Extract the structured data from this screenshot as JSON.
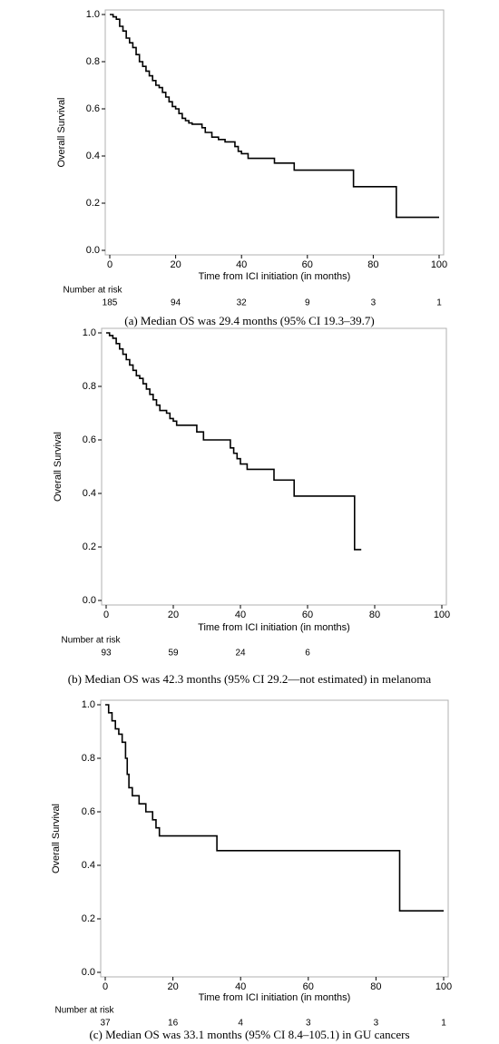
{
  "chart_data": [
    {
      "type": "line",
      "step": "post",
      "y_label": "Overall Survival",
      "x_label": "Time from ICI initiation (in months)",
      "xlim": [
        0,
        100
      ],
      "ylim": [
        0,
        1
      ],
      "xticks": [
        0,
        20,
        40,
        60,
        80,
        100
      ],
      "yticks": [
        {
          "value": 0,
          "label": "0.0"
        },
        {
          "value": 0.2,
          "label": "0.2"
        },
        {
          "value": 0.4,
          "label": "0.4"
        },
        {
          "value": 0.6,
          "label": "0.6"
        },
        {
          "value": 0.8,
          "label": "0.8"
        },
        {
          "value": 1,
          "label": "1.0"
        }
      ],
      "series": [
        {
          "color": "#000000",
          "x": [
            0,
            1,
            2,
            3,
            4,
            5,
            6,
            7,
            8,
            9,
            10,
            11,
            12,
            13,
            14,
            15,
            16,
            17,
            18,
            19,
            20,
            21,
            22,
            23,
            24,
            25,
            28,
            29,
            31,
            33,
            35,
            38,
            39,
            40,
            42,
            50,
            56,
            74,
            87,
            100
          ],
          "values": [
            1,
            0.99,
            0.98,
            0.95,
            0.93,
            0.9,
            0.88,
            0.86,
            0.83,
            0.8,
            0.78,
            0.76,
            0.74,
            0.72,
            0.7,
            0.69,
            0.67,
            0.65,
            0.63,
            0.61,
            0.6,
            0.58,
            0.56,
            0.55,
            0.54,
            0.535,
            0.52,
            0.5,
            0.48,
            0.47,
            0.46,
            0.44,
            0.42,
            0.41,
            0.39,
            0.37,
            0.34,
            0.27,
            0.14,
            0.14
          ]
        }
      ],
      "risk_label": "Number at risk",
      "risk_counts": [
        185,
        94,
        32,
        9,
        3,
        1
      ],
      "caption": "(a) Median OS was 29.4 months (95% CI 19.3–39.7)"
    },
    {
      "type": "line",
      "step": "post",
      "y_label": "Overall Survival",
      "x_label": "Time from ICI initiation (in months)",
      "xlim": [
        0,
        100
      ],
      "ylim": [
        0,
        1
      ],
      "xticks": [
        0,
        20,
        40,
        60,
        80,
        100
      ],
      "yticks": [
        {
          "value": 0,
          "label": "0.0"
        },
        {
          "value": 0.2,
          "label": "0.2"
        },
        {
          "value": 0.4,
          "label": "0.4"
        },
        {
          "value": 0.6,
          "label": "0.6"
        },
        {
          "value": 0.8,
          "label": "0.8"
        },
        {
          "value": 1,
          "label": "1.0"
        }
      ],
      "series": [
        {
          "color": "#000000",
          "x": [
            0,
            1,
            2,
            3,
            4,
            5,
            6,
            7,
            8,
            9,
            10,
            11,
            12,
            13,
            14,
            15,
            16,
            18,
            19,
            20,
            21,
            27,
            29,
            37,
            38,
            39,
            40,
            42,
            50,
            56,
            74,
            76
          ],
          "values": [
            1,
            0.99,
            0.98,
            0.96,
            0.94,
            0.92,
            0.9,
            0.88,
            0.86,
            0.84,
            0.83,
            0.81,
            0.79,
            0.77,
            0.75,
            0.73,
            0.71,
            0.7,
            0.68,
            0.67,
            0.655,
            0.63,
            0.6,
            0.57,
            0.55,
            0.53,
            0.51,
            0.49,
            0.45,
            0.39,
            0.19,
            0.19
          ]
        }
      ],
      "risk_label": "Number at risk",
      "risk_counts": [
        93,
        59,
        24,
        6
      ],
      "caption": "(b) Median OS was 42.3 months (95% CI 29.2—not estimated) in melanoma"
    },
    {
      "type": "line",
      "step": "post",
      "y_label": "Overall Survival",
      "x_label": "Time from ICI initiation (in months)",
      "xlim": [
        0,
        100
      ],
      "ylim": [
        0,
        1
      ],
      "xticks": [
        0,
        20,
        40,
        60,
        80,
        100
      ],
      "yticks": [
        {
          "value": 0,
          "label": "0.0"
        },
        {
          "value": 0.2,
          "label": "0.2"
        },
        {
          "value": 0.4,
          "label": "0.4"
        },
        {
          "value": 0.6,
          "label": "0.6"
        },
        {
          "value": 0.8,
          "label": "0.8"
        },
        {
          "value": 1,
          "label": "1.0"
        }
      ],
      "series": [
        {
          "color": "#000000",
          "x": [
            0,
            1,
            2,
            3,
            4,
            5,
            6,
            6.5,
            7,
            8,
            10,
            12,
            14,
            15,
            16,
            33,
            87,
            100
          ],
          "values": [
            1,
            0.97,
            0.94,
            0.91,
            0.89,
            0.86,
            0.8,
            0.74,
            0.69,
            0.66,
            0.63,
            0.6,
            0.57,
            0.54,
            0.51,
            0.455,
            0.23,
            0.23
          ]
        }
      ],
      "risk_label": "Number at risk",
      "risk_counts": [
        37,
        16,
        4,
        3,
        3,
        1
      ],
      "caption": "(c) Median OS was 33.1 months (95% CI 8.4–105.1) in GU cancers"
    }
  ]
}
